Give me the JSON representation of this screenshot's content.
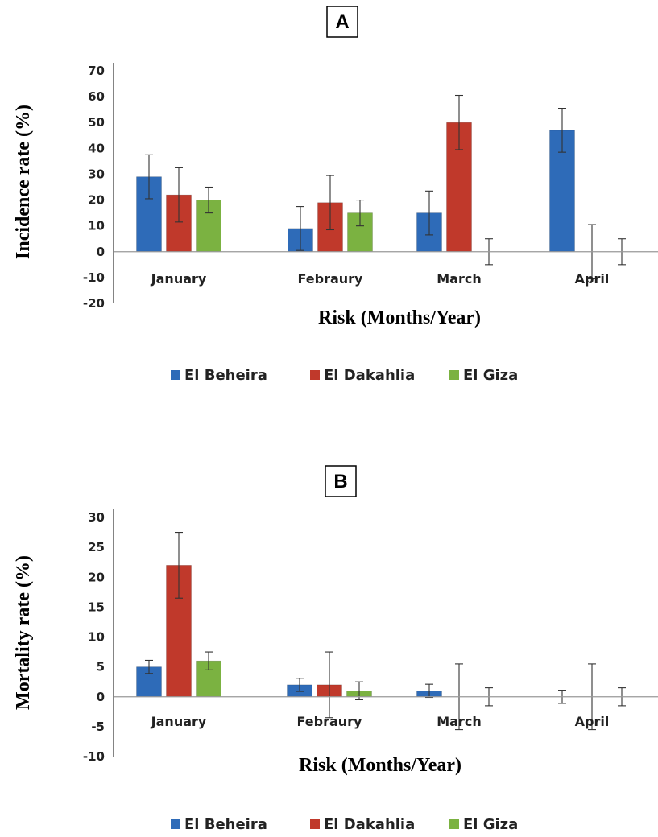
{
  "chart_data": [
    {
      "type": "bar",
      "panel_label": "A",
      "categories": [
        "January",
        "Febraury",
        "March",
        "April"
      ],
      "ylabel": "Incidence rate (%)",
      "xlabel": "Risk (Months/Year)",
      "ylim": [
        -20,
        70
      ],
      "yticks": [
        70,
        60,
        50,
        40,
        30,
        20,
        10,
        0,
        -10,
        -20
      ],
      "legend_position": "bottom",
      "series": [
        {
          "name": "El Beheira",
          "color": "#2E6BB8",
          "values": [
            29,
            9,
            15,
            47
          ],
          "errors": [
            8.5,
            8.5,
            8.5,
            8.5
          ]
        },
        {
          "name": "El Dakahlia",
          "color": "#C0392B",
          "values": [
            22,
            19,
            50,
            0
          ],
          "errors": [
            10.5,
            10.5,
            10.5,
            10.5
          ]
        },
        {
          "name": "El Giza",
          "color": "#7BB241",
          "values": [
            20,
            15,
            0,
            0
          ],
          "errors": [
            5,
            5,
            5,
            5
          ]
        }
      ]
    },
    {
      "type": "bar",
      "panel_label": "B",
      "categories": [
        "January",
        "Febraury",
        "March",
        "April"
      ],
      "ylabel": "Mortality rate (%)",
      "xlabel": "Risk (Months/Year)",
      "ylim": [
        -10,
        30
      ],
      "yticks": [
        30,
        25,
        20,
        15,
        10,
        5,
        0,
        -5,
        -10
      ],
      "legend_position": "bottom",
      "series": [
        {
          "name": "El Beheira",
          "color": "#2E6BB8",
          "values": [
            5,
            2,
            1,
            0
          ],
          "errors": [
            1.1,
            1.1,
            1.1,
            1.1
          ]
        },
        {
          "name": "El Dakahlia",
          "color": "#C0392B",
          "values": [
            22,
            2,
            0,
            0
          ],
          "errors": [
            5.5,
            5.5,
            5.5,
            5.5
          ]
        },
        {
          "name": "El Giza",
          "color": "#7BB241",
          "values": [
            6,
            1,
            0,
            0
          ],
          "errors": [
            1.5,
            1.5,
            1.5,
            1.5
          ]
        }
      ]
    }
  ]
}
